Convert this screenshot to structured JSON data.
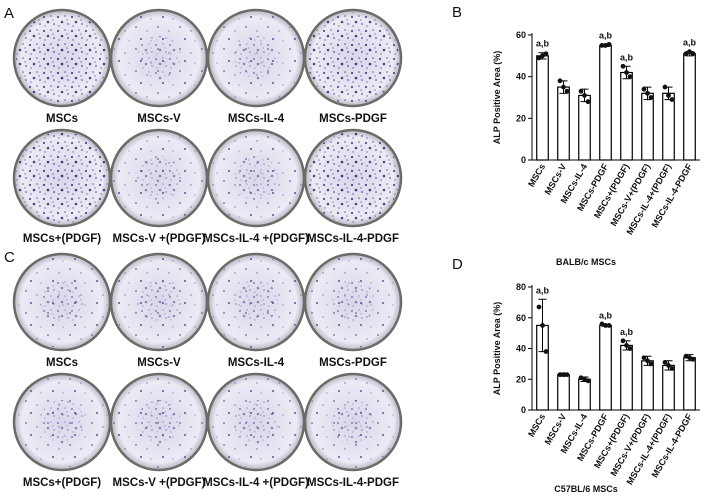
{
  "panels": [
    {
      "label": "A",
      "wells": [
        "MSCs",
        "MSCs-V",
        "MSCs-IL-4",
        "MSCs-PDGF",
        "MSCs+(PDGF)",
        "MSCs-V +(PDGF)",
        "MSCs-IL-4 +(PDGF)",
        "MSCs-IL-4-PDGF"
      ]
    },
    {
      "label": "C",
      "wells": [
        "MSCs",
        "MSCs-V",
        "MSCs-IL-4",
        "MSCs-PDGF",
        "MSCs+(PDGF)",
        "MSCs-V +(PDGF)",
        "MSCs-IL-4 +(PDGF)",
        "MSCs-IL-4-PDGF"
      ]
    }
  ],
  "chart_data": [
    {
      "type": "bar",
      "panel": "B",
      "ylabel": "ALP Positive Area (%)",
      "xlabel": "BALB/c MSCs",
      "categories": [
        "MSCs",
        "MSCs-V",
        "MSCs-IL-4",
        "MSCs-PDGF",
        "MSCs+(PDGF)",
        "MSCs-V+(PDGF)",
        "MSCs-IL-4+(PDGF)",
        "MSCs-IL-4-PDGF"
      ],
      "values": [
        50,
        35,
        31,
        55,
        42,
        32,
        32,
        51
      ],
      "errors": [
        1.5,
        3,
        3,
        0.5,
        3,
        3,
        3,
        1
      ],
      "points": [
        [
          49,
          50,
          51
        ],
        [
          38,
          35,
          33
        ],
        [
          33,
          31,
          28
        ],
        [
          55,
          55,
          55.5
        ],
        [
          45,
          42,
          40
        ],
        [
          34,
          32,
          30
        ],
        [
          35,
          31,
          29
        ],
        [
          51,
          52,
          51
        ]
      ],
      "annotations": [
        "a,b",
        null,
        null,
        "a,b",
        "a,b",
        null,
        null,
        "a,b"
      ],
      "ylim": [
        0,
        60
      ],
      "yticks": [
        0,
        20,
        40,
        60
      ]
    },
    {
      "type": "bar",
      "panel": "D",
      "ylabel": "ALP Positive Area (%)",
      "xlabel": "C57BL/6 MSCs",
      "categories": [
        "MSCs",
        "MSCs-V",
        "MSCs-IL-4",
        "MSCs-PDGF",
        "MSCs+(PDGF)",
        "MSCs-V+(PDGF)",
        "MSCs-IL-4+(PDGF)",
        "MSCs-IL-4-PDGF"
      ],
      "values": [
        55,
        23,
        20,
        55,
        42,
        32,
        29,
        34
      ],
      "errors": [
        17,
        1,
        1.5,
        0.5,
        3,
        3,
        3,
        2
      ],
      "points": [
        [
          67,
          55,
          38
        ],
        [
          23,
          23,
          23
        ],
        [
          21,
          20,
          19
        ],
        [
          56,
          55,
          55
        ],
        [
          45,
          42,
          40
        ],
        [
          34,
          32,
          30
        ],
        [
          31,
          29,
          27
        ],
        [
          35,
          34,
          33
        ]
      ],
      "annotations": [
        "a,b",
        null,
        null,
        "a,b",
        "a,b",
        null,
        null,
        null
      ],
      "ylim": [
        0,
        80
      ],
      "yticks": [
        0,
        20,
        40,
        60,
        80
      ]
    }
  ]
}
